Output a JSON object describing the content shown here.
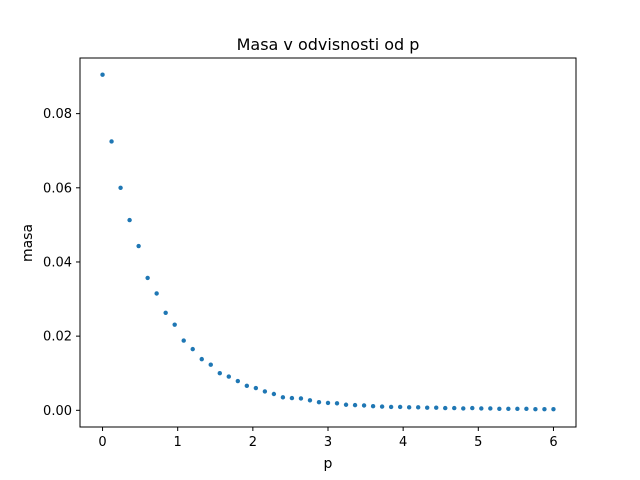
{
  "chart_data": {
    "type": "scatter",
    "title": "Masa v odvisnosti od p",
    "xlabel": "p",
    "ylabel": "masa",
    "xlim": [
      -0.3,
      6.3
    ],
    "ylim": [
      -0.0045,
      0.095
    ],
    "xticks": [
      0,
      1,
      2,
      3,
      4,
      5,
      6
    ],
    "xtick_labels": [
      "0",
      "1",
      "2",
      "3",
      "4",
      "5",
      "6"
    ],
    "yticks": [
      0.0,
      0.02,
      0.04,
      0.06,
      0.08
    ],
    "ytick_labels": [
      "0.00",
      "0.02",
      "0.04",
      "0.06",
      "0.08"
    ],
    "grid": false,
    "marker_color": "#1f77b4",
    "series": [
      {
        "x": [
          0.0,
          0.12,
          0.24,
          0.36,
          0.48,
          0.6,
          0.72,
          0.84,
          0.96,
          1.08,
          1.2,
          1.32,
          1.44,
          1.56,
          1.68,
          1.8,
          1.92,
          2.04,
          2.16,
          2.28,
          2.4,
          2.52,
          2.64,
          2.76,
          2.88,
          3.0,
          3.12,
          3.24,
          3.36,
          3.48,
          3.6,
          3.72,
          3.84,
          3.96,
          4.08,
          4.2,
          4.32,
          4.44,
          4.56,
          4.68,
          4.8,
          4.92,
          5.04,
          5.16,
          5.28,
          5.4,
          5.52,
          5.64,
          5.76,
          5.88,
          6.0
        ],
        "y": [
          0.0905,
          0.0725,
          0.06,
          0.0513,
          0.0443,
          0.0357,
          0.0315,
          0.0263,
          0.0231,
          0.0188,
          0.0165,
          0.0138,
          0.0123,
          0.01,
          0.0091,
          0.0079,
          0.0066,
          0.006,
          0.0051,
          0.0044,
          0.0035,
          0.0033,
          0.0032,
          0.0027,
          0.0022,
          0.002,
          0.0019,
          0.0015,
          0.0014,
          0.0013,
          0.0011,
          0.001,
          0.0009,
          0.0009,
          0.0008,
          0.0008,
          0.0007,
          0.0007,
          0.0006,
          0.0006,
          0.0005,
          0.0006,
          0.0005,
          0.0005,
          0.0004,
          0.0004,
          0.0004,
          0.0004,
          0.0003,
          0.0003,
          0.0003
        ]
      }
    ]
  }
}
